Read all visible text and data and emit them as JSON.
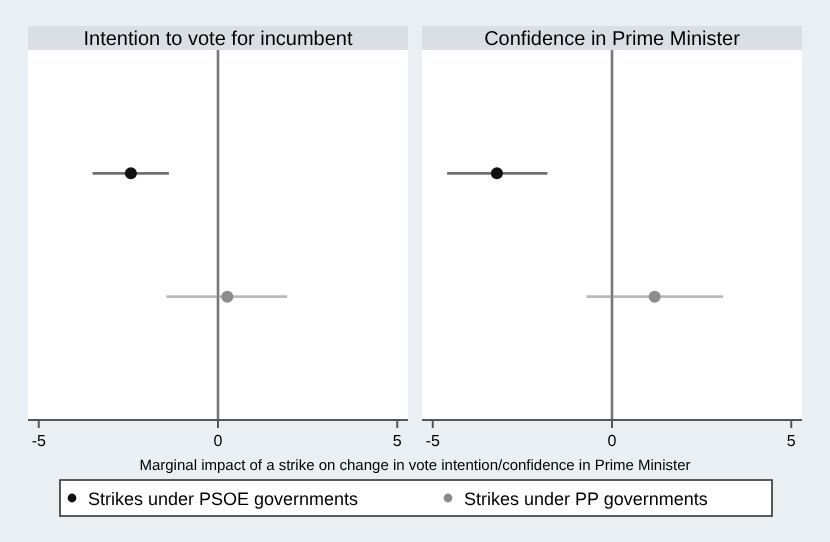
{
  "chart_data": [
    {
      "type": "scatter",
      "title": "Intention to vote for incumbent",
      "xlabel": "Marginal impact of a strike on change in vote intention/confidence in Prime Minister",
      "orientation": "horizontal",
      "categories": [
        null,
        null
      ],
      "xlim": [
        -5.3,
        5.3
      ],
      "xticks": [
        -5,
        0,
        5
      ],
      "ref_lines": [
        {
          "axis": "x",
          "value": 0
        }
      ],
      "marker": "circle",
      "legend": "bottom",
      "series": [
        {
          "name": "Strikes under PSOE governments",
          "color": "#111111",
          "values": [
            -2.43,
            null
          ],
          "errors": [
            [
              -3.5,
              -1.37
            ],
            null
          ]
        },
        {
          "name": "Strikes under PP governments",
          "color": "#8c8c8c",
          "values": [
            null,
            0.26
          ],
          "errors": [
            null,
            [
              -1.44,
              1.93
            ]
          ]
        }
      ]
    },
    {
      "type": "scatter",
      "title": "Confidence in Prime Minister",
      "orientation": "horizontal",
      "categories": [
        null,
        null
      ],
      "xlim": [
        -5.3,
        5.3
      ],
      "xticks": [
        -5,
        0,
        5
      ],
      "ref_lines": [
        {
          "axis": "x",
          "value": 0
        }
      ],
      "marker": "circle",
      "series": [
        {
          "color": "#111111",
          "values": [
            -3.21,
            null
          ],
          "errors": [
            [
              -4.6,
              -1.8
            ],
            null
          ]
        },
        {
          "color": "#8c8c8c",
          "values": [
            null,
            1.19
          ],
          "errors": [
            null,
            [
              -0.71,
              3.1
            ]
          ]
        }
      ]
    }
  ]
}
